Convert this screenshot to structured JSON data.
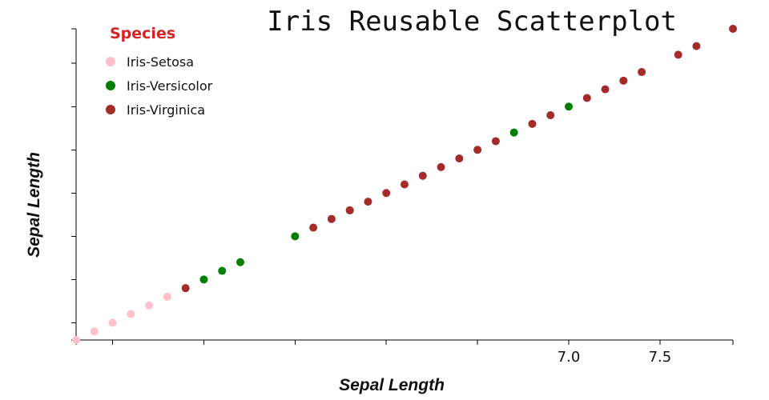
{
  "chart_data": {
    "type": "scatter",
    "title": "Iris Reusable Scatterplot",
    "xlabel": "Sepal Length",
    "ylabel": "Sepal Length",
    "xlim": [
      4.3,
      7.9
    ],
    "ylim": [
      4.3,
      7.9
    ],
    "x_ticks": [
      {
        "value": 4.5,
        "label": ""
      },
      {
        "value": 5.0,
        "label": ""
      },
      {
        "value": 5.5,
        "label": ""
      },
      {
        "value": 6.0,
        "label": ""
      },
      {
        "value": 6.5,
        "label": ""
      },
      {
        "value": 7.0,
        "label": "7.0"
      },
      {
        "value": 7.5,
        "label": "7.5"
      }
    ],
    "y_ticks": [
      4.5,
      5.0,
      5.5,
      6.0,
      6.5,
      7.0,
      7.5
    ],
    "grid": false,
    "legend_position": "top-left",
    "legend_title": "Species",
    "legend_title_color": "#d62222",
    "series": [
      {
        "name": "Iris-Setosa",
        "color": "#ffc0cb",
        "points": [
          [
            4.3,
            4.3
          ],
          [
            4.4,
            4.4
          ],
          [
            4.5,
            4.5
          ],
          [
            4.6,
            4.6
          ],
          [
            4.7,
            4.7
          ],
          [
            4.8,
            4.8
          ],
          [
            5.7,
            5.7
          ]
        ]
      },
      {
        "name": "Iris-Versicolor",
        "color": "#008000",
        "points": [
          [
            5.0,
            5.0
          ],
          [
            5.1,
            5.1
          ],
          [
            5.2,
            5.2
          ],
          [
            5.8,
            5.8
          ],
          [
            5.5,
            5.5
          ],
          [
            6.7,
            6.7
          ],
          [
            7.0,
            7.0
          ]
        ]
      },
      {
        "name": "Iris-Virginica",
        "color": "#a52a2a",
        "points": [
          [
            4.9,
            4.9
          ],
          [
            5.6,
            5.6
          ],
          [
            5.7,
            5.7
          ],
          [
            5.8,
            5.8
          ],
          [
            5.9,
            5.9
          ],
          [
            6.0,
            6.0
          ],
          [
            6.1,
            6.1
          ],
          [
            6.2,
            6.2
          ],
          [
            6.3,
            6.3
          ],
          [
            6.4,
            6.4
          ],
          [
            6.5,
            6.5
          ],
          [
            6.6,
            6.6
          ],
          [
            6.8,
            6.8
          ],
          [
            6.9,
            6.9
          ],
          [
            7.1,
            7.1
          ],
          [
            7.2,
            7.2
          ],
          [
            7.3,
            7.3
          ],
          [
            7.4,
            7.4
          ],
          [
            7.6,
            7.6
          ],
          [
            7.7,
            7.7
          ],
          [
            7.9,
            7.9
          ]
        ]
      }
    ]
  }
}
